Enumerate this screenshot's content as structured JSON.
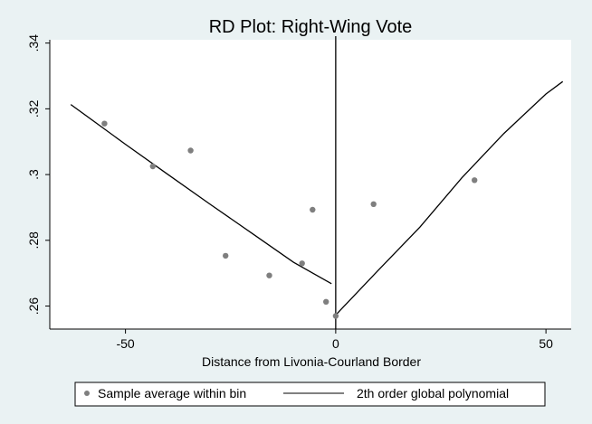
{
  "chart_data": {
    "type": "scatter",
    "title": "RD Plot: Right-Wing Vote",
    "xlabel": "Distance from Livonia-Courland Border",
    "ylabel": "",
    "xlim": [
      -68,
      56
    ],
    "ylim": [
      0.253,
      0.341
    ],
    "x_ticks": [
      -50,
      0,
      50
    ],
    "x_tick_labels": [
      "-50",
      "0",
      "50"
    ],
    "y_ticks": [
      0.26,
      0.28,
      0.3,
      0.32,
      0.34
    ],
    "y_tick_labels": [
      ".26",
      ".28",
      ".3",
      ".32",
      ".34"
    ],
    "grid": false,
    "cutoff": 0,
    "legend_position": "bottom",
    "series": [
      {
        "name": "Sample average within bin",
        "kind": "scatter",
        "color": "#7f7f7f",
        "points": [
          {
            "x": -55.0,
            "y": 0.3155
          },
          {
            "x": -43.5,
            "y": 0.3025
          },
          {
            "x": -34.5,
            "y": 0.3073
          },
          {
            "x": -26.2,
            "y": 0.2753
          },
          {
            "x": -15.8,
            "y": 0.2693
          },
          {
            "x": -8.0,
            "y": 0.273
          },
          {
            "x": -5.5,
            "y": 0.2893
          },
          {
            "x": -2.3,
            "y": 0.2613
          },
          {
            "x": 0.0,
            "y": 0.257
          },
          {
            "x": 9.0,
            "y": 0.291
          },
          {
            "x": 33.0,
            "y": 0.2983
          }
        ]
      },
      {
        "name": "2th order global polynomial",
        "kind": "line",
        "color": "#000000",
        "segments": [
          [
            {
              "x": -63.0,
              "y": 0.3213
            },
            {
              "x": -50.0,
              "y": 0.3092
            },
            {
              "x": -40.0,
              "y": 0.3001
            },
            {
              "x": -30.0,
              "y": 0.2911
            },
            {
              "x": -20.0,
              "y": 0.2822
            },
            {
              "x": -10.0,
              "y": 0.2733
            },
            {
              "x": -1.0,
              "y": 0.2668
            }
          ],
          [
            {
              "x": 0.0,
              "y": 0.2573
            },
            {
              "x": 10.0,
              "y": 0.2707
            },
            {
              "x": 20.0,
              "y": 0.284
            },
            {
              "x": 30.0,
              "y": 0.299
            },
            {
              "x": 40.0,
              "y": 0.3125
            },
            {
              "x": 50.0,
              "y": 0.3245
            },
            {
              "x": 54.0,
              "y": 0.3283
            }
          ]
        ]
      }
    ]
  }
}
